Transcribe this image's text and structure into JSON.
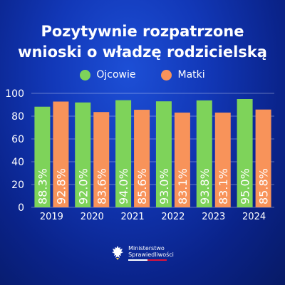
{
  "title_line1": "Pozytywnie rozpatrzone",
  "title_line2": "wnioski o władzę rodzicielską",
  "footer": {
    "line1": "Ministerstwo",
    "line2": "Sprawiedliwości",
    "logo_icon": "polish-eagle-emblem-icon"
  },
  "colors": {
    "ojcowie": "#7ed35a",
    "matki": "#f8935a"
  },
  "chart_data": {
    "type": "bar",
    "title": "Pozytywnie rozpatrzone wnioski o władzę rodzicielską",
    "categories": [
      "2019",
      "2020",
      "2021",
      "2022",
      "2023",
      "2024"
    ],
    "series": [
      {
        "name": "Ojcowie",
        "values": [
          88.3,
          92.0,
          94.0,
          93.0,
          93.8,
          95.0
        ],
        "labels": [
          "88.3%",
          "92.0%",
          "94.0%",
          "93.0%",
          "93.8%",
          "95.0%"
        ]
      },
      {
        "name": "Matki",
        "values": [
          92.8,
          83.6,
          85.6,
          83.1,
          83.1,
          85.8
        ],
        "labels": [
          "92.8%",
          "83.6%",
          "85.6%",
          "83.1%",
          "83.1%",
          "85.8%"
        ]
      }
    ],
    "yticks": [
      "0",
      "20",
      "40",
      "60",
      "80",
      "100"
    ],
    "ylim": [
      0,
      100
    ],
    "grid": true,
    "legend": "top-center"
  }
}
